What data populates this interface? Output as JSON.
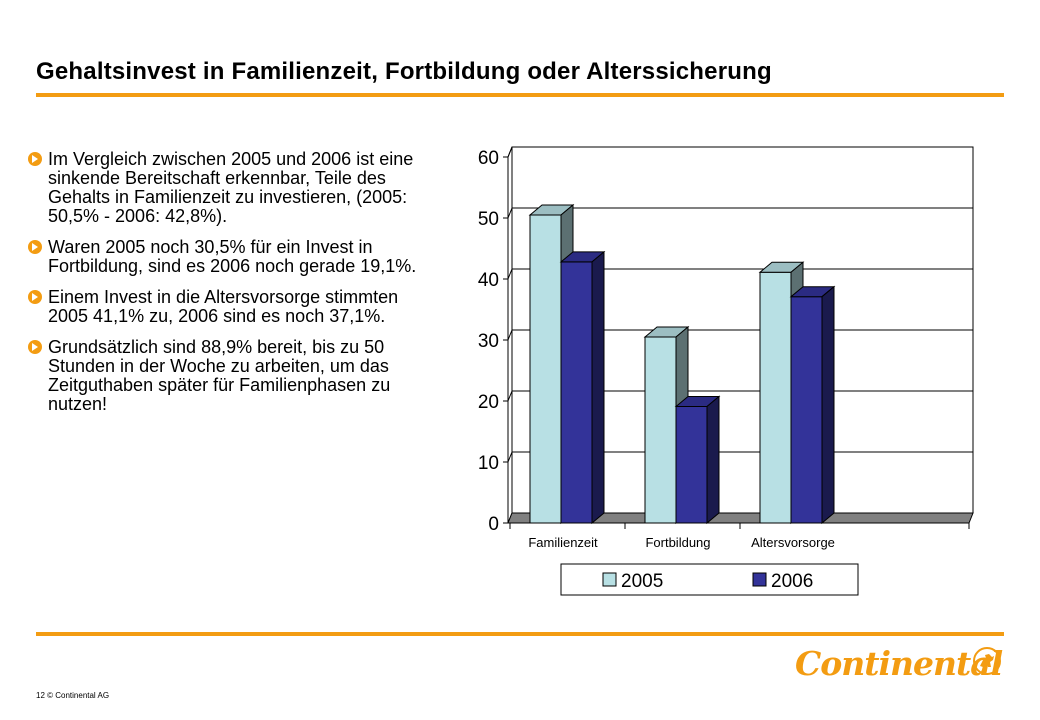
{
  "slide": {
    "title": "Gehaltsinvest in Familienzeit, Fortbildung oder Alterssicherung",
    "bullets": [
      "Im Vergleich zwischen 2005 und 2006 ist eine sinkende Bereitschaft erkennbar, Teile des Gehalts in Familienzeit zu investieren, (2005: 50,5% - 2006: 42,8%).",
      "Waren 2005 noch 30,5% für ein Invest in Fortbildung, sind es 2006 noch gerade 19,1%.",
      "Einem Invest in die Altersvorsorge stimmten 2005 41,1% zu, 2006 sind es noch 37,1%.",
      "Grundsätzlich sind 88,9% bereit, bis zu 50 Stunden in der Woche zu arbeiten, um das Zeitguthaben später für Familienphasen zu nutzen!"
    ],
    "footer": "12  © Continental  AG",
    "logo_text": "Continental",
    "accent_color": "#f39c12"
  },
  "chart_data": {
    "type": "bar",
    "style": "3d-clustered",
    "categories": [
      "Familienzeit",
      "Fortbildung",
      "Altersvorsorge"
    ],
    "series": [
      {
        "name": "2005",
        "values": [
          50.5,
          30.5,
          41.1
        ],
        "color": "#b8e0e4"
      },
      {
        "name": "2006",
        "values": [
          42.8,
          19.1,
          37.1
        ],
        "color": "#333399"
      }
    ],
    "yticks": [
      0,
      10,
      20,
      30,
      40,
      50,
      60
    ],
    "ylim": [
      0,
      60
    ],
    "grid": true,
    "legend": "bottom",
    "title": "",
    "xlabel": "",
    "ylabel": ""
  }
}
